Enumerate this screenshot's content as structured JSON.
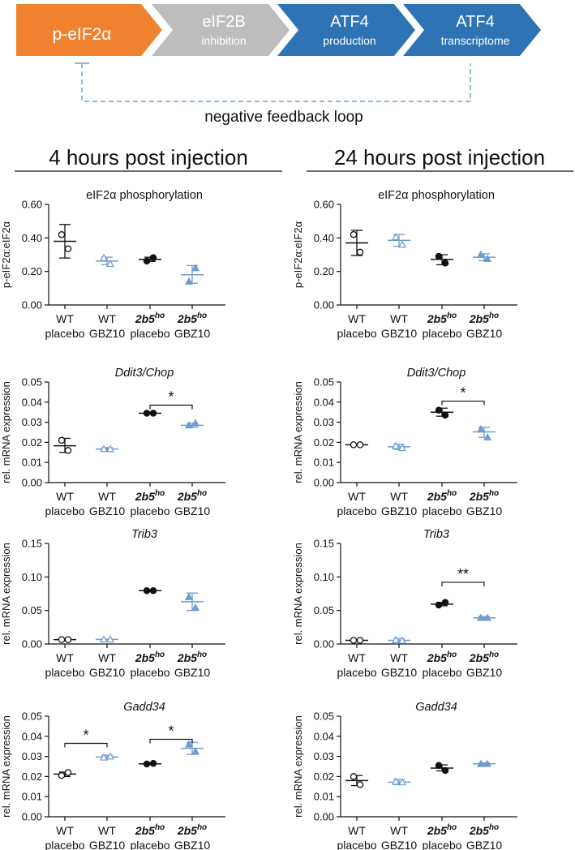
{
  "pathway": {
    "steps": [
      {
        "line1": "p-eIF2α",
        "line2": "",
        "color": "#F0812F"
      },
      {
        "line1": "eIF2B",
        "line2": "inhibition",
        "color": "#BDBDBD"
      },
      {
        "line1": "ATF4",
        "line2": "production",
        "color": "#2E74B5"
      },
      {
        "line1": "ATF4",
        "line2": "transcriptome",
        "color": "#2E74B5"
      }
    ],
    "feedback_label": "negative feedback loop",
    "feedback_color": "#6AA0D8"
  },
  "columns": [
    {
      "header": "4 hours post injection"
    },
    {
      "header": "24 hours post injection"
    }
  ],
  "groups": [
    {
      "l1": "WT",
      "l2": "placebo"
    },
    {
      "l1": "WT",
      "l2": "GBZ10"
    },
    {
      "l1": "2b5",
      "sup": "ho",
      "l2": "placebo"
    },
    {
      "l1": "2b5",
      "sup": "ho",
      "l2": "GBZ10"
    }
  ],
  "colors": {
    "placebo": "#111111",
    "gbz10": "#6F9BD1"
  },
  "chart_data": [
    {
      "type": "scatter",
      "title": "eIF2α phosphorylation",
      "title_italic": false,
      "ylabel": "p-eIF2α:eIF2α",
      "ylim": [
        0,
        0.6
      ],
      "yticks": [
        "0.00",
        "0.20",
        "0.40",
        "0.60"
      ],
      "series": [
        {
          "values": [
            0.42,
            0.335
          ],
          "mean": 0.38,
          "sd": [
            0.28,
            0.48
          ]
        },
        {
          "values": [
            0.28,
            0.245
          ],
          "mean": 0.262,
          "sd": [
            0.24,
            0.285
          ]
        },
        {
          "values": [
            0.262,
            0.282
          ],
          "mean": 0.272,
          "sd": [
            0.26,
            0.285
          ]
        },
        {
          "values": [
            0.14,
            0.22
          ],
          "mean": 0.18,
          "sd": [
            0.13,
            0.235
          ]
        }
      ],
      "sig": []
    },
    {
      "type": "scatter",
      "title": "eIF2α phosphorylation",
      "title_italic": false,
      "ylabel": "p-eIF2α:eIF2α",
      "ylim": [
        0,
        0.6
      ],
      "yticks": [
        "0.00",
        "0.20",
        "0.40",
        "0.60"
      ],
      "series": [
        {
          "values": [
            0.42,
            0.315
          ],
          "mean": 0.37,
          "sd": [
            0.295,
            0.445
          ]
        },
        {
          "values": [
            0.405,
            0.36
          ],
          "mean": 0.385,
          "sd": [
            0.35,
            0.42
          ]
        },
        {
          "values": [
            0.29,
            0.25
          ],
          "mean": 0.272,
          "sd": [
            0.24,
            0.3
          ]
        },
        {
          "values": [
            0.3,
            0.275
          ],
          "mean": 0.285,
          "sd": [
            0.265,
            0.305
          ]
        }
      ],
      "sig": []
    },
    {
      "type": "scatter",
      "title": "Ddit3/Chop",
      "title_italic": true,
      "ylabel": "rel. mRNA expression",
      "ylim": [
        0,
        0.05
      ],
      "yticks": [
        "0.00",
        "0.01",
        "0.02",
        "0.03",
        "0.04",
        "0.05"
      ],
      "series": [
        {
          "values": [
            0.021,
            0.016
          ],
          "mean": 0.0183,
          "sd": [
            0.015,
            0.022
          ]
        },
        {
          "values": [
            0.0167,
            0.0167
          ],
          "mean": 0.0167,
          "sd": [
            0.016,
            0.0174
          ]
        },
        {
          "values": [
            0.0345,
            0.0345
          ],
          "mean": 0.0345,
          "sd": [
            0.0342,
            0.0348
          ]
        },
        {
          "values": [
            0.0285,
            0.0295
          ],
          "mean": 0.0285,
          "sd": [
            0.0275,
            0.0295
          ]
        }
      ],
      "sig": [
        {
          "from": 2,
          "to": 3,
          "y": 0.0385,
          "label": "*"
        }
      ]
    },
    {
      "type": "scatter",
      "title": "Ddit3/Chop",
      "title_italic": true,
      "ylabel": "rel. mRNA expression",
      "ylim": [
        0,
        0.05
      ],
      "yticks": [
        "0.00",
        "0.01",
        "0.02",
        "0.03",
        "0.04",
        "0.05"
      ],
      "series": [
        {
          "values": [
            0.0188,
            0.0188
          ],
          "mean": 0.0188,
          "sd": [
            0.0184,
            0.0192
          ]
        },
        {
          "values": [
            0.0182,
            0.0172
          ],
          "mean": 0.0178,
          "sd": [
            0.0165,
            0.019
          ]
        },
        {
          "values": [
            0.036,
            0.0335
          ],
          "mean": 0.035,
          "sd": [
            0.033,
            0.037
          ]
        },
        {
          "values": [
            0.0265,
            0.0225
          ],
          "mean": 0.0252,
          "sd": [
            0.0225,
            0.0275
          ]
        }
      ],
      "sig": [
        {
          "from": 2,
          "to": 3,
          "y": 0.0405,
          "label": "*"
        }
      ]
    },
    {
      "type": "scatter",
      "title": "Trib3",
      "title_italic": true,
      "ylabel": "rel. mRNA expression",
      "ylim": [
        0,
        0.15
      ],
      "yticks": [
        "0.00",
        "0.05",
        "0.10",
        "0.15"
      ],
      "series": [
        {
          "values": [
            0.0065,
            0.0065
          ],
          "mean": 0.0065,
          "sd": [
            0.006,
            0.007
          ]
        },
        {
          "values": [
            0.0068,
            0.0068
          ],
          "mean": 0.0068,
          "sd": [
            0.0062,
            0.0074
          ]
        },
        {
          "values": [
            0.0795,
            0.0795
          ],
          "mean": 0.0795,
          "sd": [
            0.079,
            0.08
          ]
        },
        {
          "values": [
            0.07,
            0.054
          ],
          "mean": 0.063,
          "sd": [
            0.05,
            0.076
          ]
        }
      ],
      "sig": []
    },
    {
      "type": "scatter",
      "title": "Trib3",
      "title_italic": true,
      "ylabel": "rel. mRNA expression",
      "ylim": [
        0,
        0.15
      ],
      "yticks": [
        "0.00",
        "0.05",
        "0.10",
        "0.15"
      ],
      "series": [
        {
          "values": [
            0.0055,
            0.0055
          ],
          "mean": 0.0055,
          "sd": [
            0.005,
            0.006
          ]
        },
        {
          "values": [
            0.006,
            0.005
          ],
          "mean": 0.0055,
          "sd": [
            0.003,
            0.008
          ]
        },
        {
          "values": [
            0.058,
            0.062
          ],
          "mean": 0.0595,
          "sd": [
            0.057,
            0.062
          ]
        },
        {
          "values": [
            0.039,
            0.039
          ],
          "mean": 0.039,
          "sd": [
            0.037,
            0.041
          ]
        }
      ],
      "sig": [
        {
          "from": 2,
          "to": 3,
          "y": 0.092,
          "label": "**"
        }
      ]
    },
    {
      "type": "scatter",
      "title": "Gadd34",
      "title_italic": true,
      "ylabel": "rel. mRNA expression",
      "ylim": [
        0,
        0.05
      ],
      "yticks": [
        "0.00",
        "0.01",
        "0.02",
        "0.03",
        "0.04",
        "0.05"
      ],
      "series": [
        {
          "values": [
            0.0205,
            0.022
          ],
          "mean": 0.0212,
          "sd": [
            0.02,
            0.0222
          ]
        },
        {
          "values": [
            0.0295,
            0.03
          ],
          "mean": 0.0297,
          "sd": [
            0.0288,
            0.0306
          ]
        },
        {
          "values": [
            0.0262,
            0.0265
          ],
          "mean": 0.0263,
          "sd": [
            0.026,
            0.0268
          ]
        },
        {
          "values": [
            0.036,
            0.0325
          ],
          "mean": 0.034,
          "sd": [
            0.031,
            0.037
          ]
        }
      ],
      "sig": [
        {
          "from": 0,
          "to": 1,
          "y": 0.0365,
          "label": "*"
        },
        {
          "from": 2,
          "to": 3,
          "y": 0.0385,
          "label": "*"
        }
      ]
    },
    {
      "type": "scatter",
      "title": "Gadd34",
      "title_italic": true,
      "ylabel": "rel. mRNA expression",
      "ylim": [
        0,
        0.05
      ],
      "yticks": [
        "0.00",
        "0.01",
        "0.02",
        "0.03",
        "0.04",
        "0.05"
      ],
      "series": [
        {
          "values": [
            0.02,
            0.016
          ],
          "mean": 0.018,
          "sd": [
            0.0155,
            0.0205
          ]
        },
        {
          "values": [
            0.0175,
            0.0172
          ],
          "mean": 0.0172,
          "sd": [
            0.016,
            0.0185
          ]
        },
        {
          "values": [
            0.0255,
            0.023
          ],
          "mean": 0.0242,
          "sd": [
            0.0228,
            0.0258
          ]
        },
        {
          "values": [
            0.0263,
            0.0263
          ],
          "mean": 0.0263,
          "sd": [
            0.0258,
            0.0268
          ]
        }
      ],
      "sig": []
    }
  ]
}
